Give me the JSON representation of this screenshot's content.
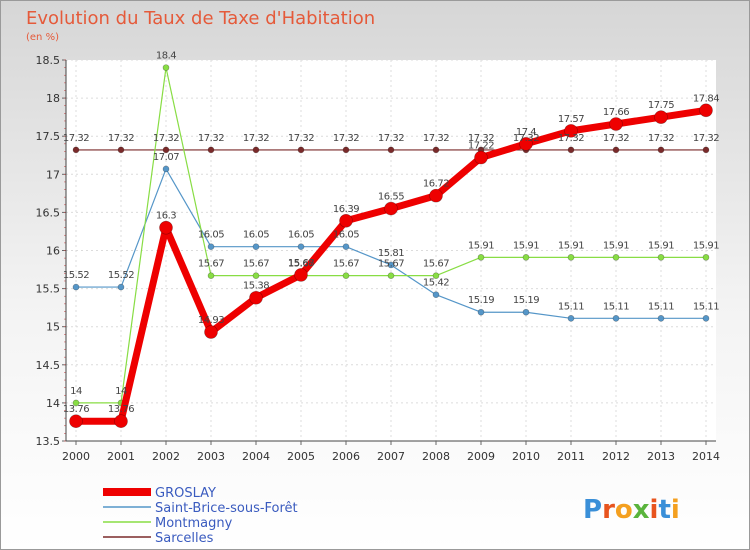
{
  "header": {
    "title": "Evolution du Taux de Taxe d'Habitation",
    "unit": "(en %)"
  },
  "brand": {
    "logo_text": "Proxiti"
  },
  "chart_data": {
    "type": "line",
    "title": "Evolution du Taux de Taxe d'Habitation",
    "ylabel": "(en %)",
    "xlabel": "",
    "x": [
      "2000",
      "2001",
      "2002",
      "2003",
      "2004",
      "2005",
      "2006",
      "2007",
      "2008",
      "2009",
      "2010",
      "2011",
      "2012",
      "2013",
      "2014"
    ],
    "ylim": [
      13.5,
      18.5
    ],
    "yticks": [
      "13.5",
      "14",
      "14.5",
      "15",
      "15.5",
      "16",
      "16.5",
      "17",
      "17.5",
      "18",
      "18.5"
    ],
    "grid": true,
    "legend_position": "bottom",
    "series": [
      {
        "name": "GROSLAY",
        "color": "#ee0000",
        "values": [
          13.76,
          13.76,
          16.3,
          14.93,
          15.38,
          15.68,
          16.39,
          16.55,
          16.72,
          17.22,
          17.4,
          17.57,
          17.66,
          17.75,
          17.84
        ],
        "labels": [
          "13.76",
          "13.76",
          "16.3",
          "14.93",
          "15.38",
          "15.68",
          "16.39",
          "16.55",
          "16.72",
          "17.22",
          "17.4",
          "17.57",
          "17.66",
          "17.75",
          "17.84"
        ]
      },
      {
        "name": "Saint-Brice-sous-Forêt",
        "color": "#5596c8",
        "values": [
          15.52,
          15.52,
          17.07,
          16.05,
          16.05,
          16.05,
          16.05,
          15.81,
          15.42,
          15.19,
          15.19,
          15.11,
          15.11,
          15.11,
          15.11
        ],
        "labels": [
          "15.52",
          "15.52",
          "17.07",
          "16.05",
          "16.05",
          "16.05",
          "16.05",
          "15.81",
          "15.42",
          "15.19",
          "15.19",
          "15.11",
          "15.11",
          "15.11",
          "15.11"
        ]
      },
      {
        "name": "Montmagny",
        "color": "#88dd44",
        "values": [
          14,
          14,
          18.4,
          15.67,
          15.67,
          15.67,
          15.67,
          15.67,
          15.67,
          15.91,
          15.91,
          15.91,
          15.91,
          15.91,
          15.91
        ],
        "labels": [
          "14",
          "14",
          "18.4",
          "15.67",
          "15.67",
          "15.67",
          "15.67",
          "15.67",
          "15.67",
          "15.91",
          "15.91",
          "15.91",
          "15.91",
          "15.91",
          "15.91"
        ]
      },
      {
        "name": "Sarcelles",
        "color": "#7a2a2a",
        "values": [
          17.32,
          17.32,
          17.32,
          17.32,
          17.32,
          17.32,
          17.32,
          17.32,
          17.32,
          17.32,
          17.32,
          17.32,
          17.32,
          17.32,
          17.32
        ],
        "labels": [
          "17.32",
          "17.32",
          "17.32",
          "17.32",
          "17.32",
          "17.32",
          "17.32",
          "17.32",
          "17.32",
          "17.32",
          "17.32",
          "17.32",
          "17.32",
          "17.32",
          "17.32"
        ]
      }
    ]
  }
}
